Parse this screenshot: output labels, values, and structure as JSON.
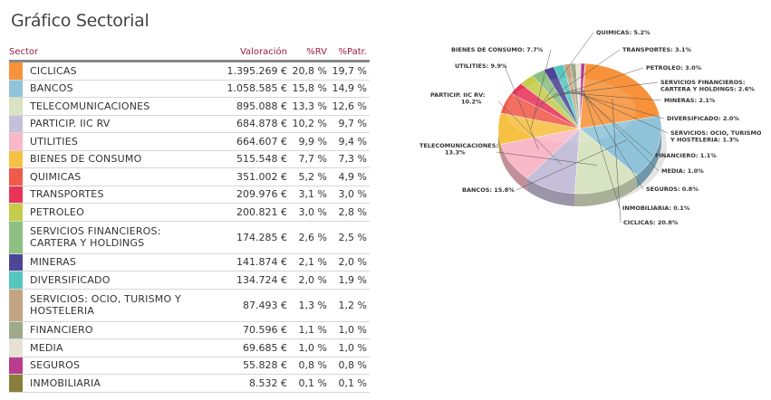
{
  "title": "Gráfico Sectorial",
  "table": {
    "headers": {
      "sector": "Sector",
      "valoracion": "Valoración",
      "rv": "%RV",
      "patr": "%Patr."
    },
    "rows": [
      {
        "name": "CICLICAS",
        "valoracion": "1.395.269 €",
        "rv": "20,8 %",
        "patr": "19,7 %",
        "color": "#f7923a"
      },
      {
        "name": "BANCOS",
        "valoracion": "1.058.585 €",
        "rv": "15,8 %",
        "patr": "14,9 %",
        "color": "#8fc3da"
      },
      {
        "name": "TELECOMUNICACIONES",
        "valoracion": "895.088 €",
        "rv": "13,3 %",
        "patr": "12,6 %",
        "color": "#d8e3c2"
      },
      {
        "name": "PARTICIP. IIC RV",
        "valoracion": "684.878 €",
        "rv": "10,2 %",
        "patr": "9,7 %",
        "color": "#c5bfd9"
      },
      {
        "name": "UTILITIES",
        "valoracion": "664.607 €",
        "rv": "9,9 %",
        "patr": "9,4 %",
        "color": "#f9b8c7"
      },
      {
        "name": "BIENES DE CONSUMO",
        "valoracion": "515.548 €",
        "rv": "7,7 %",
        "patr": "7,3 %",
        "color": "#f6c143"
      },
      {
        "name": "QUIMICAS",
        "valoracion": "351.002 €",
        "rv": "5,2 %",
        "patr": "4,9 %",
        "color": "#ef5a4a"
      },
      {
        "name": "TRANSPORTES",
        "valoracion": "209.976 €",
        "rv": "3,1 %",
        "patr": "3,0 %",
        "color": "#e9345a"
      },
      {
        "name": "PETROLEO",
        "valoracion": "200.821 €",
        "rv": "3,0 %",
        "patr": "2,8 %",
        "color": "#c5cc4a"
      },
      {
        "name": "SERVICIOS FINANCIEROS: CARTERA Y HOLDINGS",
        "valoracion": "174.285 €",
        "rv": "2,6 %",
        "patr": "2,5 %",
        "color": "#8cc080",
        "tall": true
      },
      {
        "name": "MINERAS",
        "valoracion": "141.874 €",
        "rv": "2,1 %",
        "patr": "2,0 %",
        "color": "#4d4596"
      },
      {
        "name": "DIVERSIFICADO",
        "valoracion": "134.724 €",
        "rv": "2,0 %",
        "patr": "1,9 %",
        "color": "#56c6c0"
      },
      {
        "name": "SERVICIOS: OCIO, TURISMO Y HOSTELERIA",
        "valoracion": "87.493 €",
        "rv": "1,3 %",
        "patr": "1,2 %",
        "color": "#c4a583",
        "tall": true
      },
      {
        "name": "FINANCIERO",
        "valoracion": "70.596 €",
        "rv": "1,1 %",
        "patr": "1,0 %",
        "color": "#9eaa8a"
      },
      {
        "name": "MEDIA",
        "valoracion": "69.685 €",
        "rv": "1,0 %",
        "patr": "1,0 %",
        "color": "#e7e1d3"
      },
      {
        "name": "SEGUROS",
        "valoracion": "55.828 €",
        "rv": "0,8 %",
        "patr": "0,8 %",
        "color": "#b93d8e"
      },
      {
        "name": "INMOBILIARIA",
        "valoracion": "8.532 €",
        "rv": "0,1 %",
        "patr": "0,1 %",
        "color": "#8b7d3a"
      }
    ]
  },
  "chart_data": {
    "type": "pie",
    "legend": "none",
    "slices": [
      {
        "label": "CICLICAS: 20.8%",
        "value": 20.8,
        "color": "#f7923a"
      },
      {
        "label": "BANCOS: 15.8%",
        "value": 15.8,
        "color": "#8fc3da"
      },
      {
        "label": "TELECOMUNICACIONES: 13.3%",
        "value": 13.3,
        "color": "#d8e3c2"
      },
      {
        "label": "PARTICIP. IIC RV: 10.2%",
        "value": 10.2,
        "color": "#c5bfd9"
      },
      {
        "label": "UTILITIES: 9.9%",
        "value": 9.9,
        "color": "#f9b8c7"
      },
      {
        "label": "BIENES DE CONSUMO: 7.7%",
        "value": 7.7,
        "color": "#f6c143"
      },
      {
        "label": "QUIMICAS: 5.2%",
        "value": 5.2,
        "color": "#ef5a4a"
      },
      {
        "label": "TRANSPORTES: 3.1%",
        "value": 3.1,
        "color": "#e9345a"
      },
      {
        "label": "PETROLEO: 3.0%",
        "value": 3.0,
        "color": "#c5cc4a"
      },
      {
        "label": "SERVICIOS FINANCIEROS: CARTERA Y HOLDINGS: 2.6%",
        "value": 2.6,
        "color": "#8cc080"
      },
      {
        "label": "MINERAS: 2.1%",
        "value": 2.1,
        "color": "#4d4596"
      },
      {
        "label": "DIVERSIFICADO: 2.0%",
        "value": 2.0,
        "color": "#56c6c0"
      },
      {
        "label": "SERVICIOS: OCIO, TURISMO Y HOSTELERIA: 1.3%",
        "value": 1.3,
        "color": "#c4a583"
      },
      {
        "label": "FINANCIERO: 1.1%",
        "value": 1.1,
        "color": "#9eaa8a"
      },
      {
        "label": "MEDIA: 1.0%",
        "value": 1.0,
        "color": "#e7e1d3"
      },
      {
        "label": "SEGUROS: 0.8%",
        "value": 0.8,
        "color": "#b93d8e"
      },
      {
        "label": "INMOBILIARIA: 0.1%",
        "value": 0.1,
        "color": "#8b7d3a"
      }
    ]
  }
}
